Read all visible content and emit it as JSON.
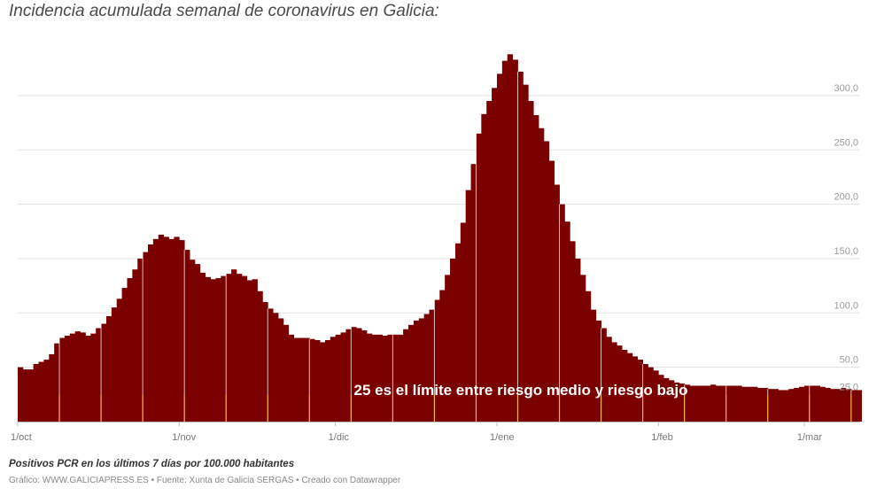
{
  "chart_data": {
    "type": "bar",
    "title": "Incidencia acumulada semanal de coronavirus en Galicia:",
    "xlabel": "",
    "ylabel": "",
    "ylim": [
      0,
      345
    ],
    "yticks": [
      25,
      50,
      100,
      150,
      200,
      250,
      300
    ],
    "ytick_labels": [
      "25,0",
      "50,0",
      "100,0",
      "150,0",
      "200,0",
      "250,0",
      "300,0"
    ],
    "x_tick_labels": [
      {
        "label": "1/oct",
        "day": 0
      },
      {
        "label": "1/nov",
        "day": 31
      },
      {
        "label": "1/dic",
        "day": 61
      },
      {
        "label": "1/ene",
        "day": 92
      },
      {
        "label": "1/feb",
        "day": 123
      },
      {
        "label": "1/mar",
        "day": 151
      }
    ],
    "threshold": 25,
    "threshold_color": "#fcb84c",
    "bar_color": "#7b0000",
    "grid": true,
    "annotation": "25 es el límite entre riesgo medio y riesgo bajo",
    "series": [
      {
        "name": "Positivos PCR en los últimos 7 días por 100.000 habitantes",
        "start": "1/oct",
        "values": [
          50,
          48,
          48,
          53,
          55,
          57,
          62,
          72,
          77,
          79,
          81,
          83,
          82,
          79,
          81,
          86,
          90,
          97,
          105,
          113,
          123,
          132,
          140,
          150,
          156,
          163,
          168,
          172,
          170,
          168,
          170,
          167,
          158,
          149,
          145,
          137,
          133,
          131,
          132,
          134,
          136,
          140,
          136,
          134,
          130,
          131,
          120,
          110,
          104,
          100,
          95,
          89,
          80,
          77,
          77,
          77,
          76,
          75,
          73,
          75,
          78,
          80,
          82,
          85,
          87,
          86,
          84,
          81,
          80,
          80,
          79,
          80,
          80,
          80,
          85,
          89,
          93,
          95,
          99,
          103,
          112,
          121,
          135,
          150,
          164,
          183,
          213,
          237,
          265,
          283,
          295,
          307,
          320,
          332,
          338,
          333,
          322,
          310,
          295,
          282,
          270,
          258,
          240,
          218,
          200,
          184,
          166,
          150,
          135,
          120,
          103,
          93,
          86,
          78,
          73,
          70,
          66,
          63,
          60,
          57,
          53,
          50,
          47,
          43,
          40,
          38,
          36,
          35,
          34,
          33,
          33,
          33,
          33,
          34,
          33,
          33,
          33,
          33,
          33,
          32,
          32,
          32,
          31,
          31,
          30,
          30,
          29,
          29,
          30,
          31,
          32,
          33,
          33,
          33,
          32,
          31,
          30,
          30,
          31,
          30,
          29,
          29
        ]
      }
    ],
    "note": "Positivos PCR en los últimos 7 días por 100.000 habitantes",
    "credits": "Gráfico: WWW.GALICIAPRESS.ES • Fuente: Xunta de Galicia SERGAS • Creado con Datawrapper"
  }
}
